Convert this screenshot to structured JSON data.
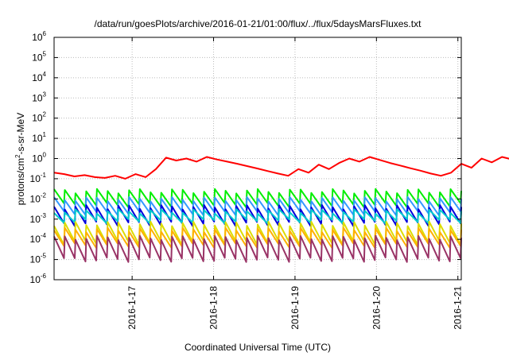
{
  "chart_data": {
    "type": "line",
    "title": "/data/run/goesPlots/archive/2016-01-21/01:00/flux/../flux/5daysMarsFluxes.txt",
    "xlabel": "Coordinated Universal Time (UTC)",
    "ylabel": "protons/cm2-s-sr-MeV",
    "ylabel_parts": {
      "prefix": "protons/cm",
      "sup": "2",
      "suffix": "-s-sr-MeV"
    },
    "y_scale": "log",
    "ylim": [
      "1e-6",
      "1e6"
    ],
    "y_ticks": [
      {
        "base": "10",
        "exp": "-6"
      },
      {
        "base": "10",
        "exp": "-5"
      },
      {
        "base": "10",
        "exp": "-4"
      },
      {
        "base": "10",
        "exp": "-3"
      },
      {
        "base": "10",
        "exp": "-2"
      },
      {
        "base": "10",
        "exp": "-1"
      },
      {
        "base": "10",
        "exp": "0"
      },
      {
        "base": "10",
        "exp": "1"
      },
      {
        "base": "10",
        "exp": "2"
      },
      {
        "base": "10",
        "exp": "3"
      },
      {
        "base": "10",
        "exp": "4"
      },
      {
        "base": "10",
        "exp": "5"
      },
      {
        "base": "10",
        "exp": "6"
      }
    ],
    "xlim": [
      "2016-01-16 01:00",
      "2016-01-21 01:00"
    ],
    "x_ticks": [
      "2016-1-17",
      "2016-1-18",
      "2016-1-19",
      "2016-1-20",
      "2016-1-21"
    ],
    "grid": true,
    "series": [
      {
        "color": "#ff0000",
        "x_start": "2016-01-16 01:00",
        "x_step_hours": 3,
        "values": [
          0.2,
          0.17,
          0.13,
          0.15,
          0.12,
          0.11,
          0.14,
          0.1,
          0.17,
          0.12,
          0.3,
          1.1,
          0.8,
          1.0,
          0.7,
          1.2,
          0.9,
          0.7,
          0.55,
          0.42,
          0.32,
          0.24,
          0.18,
          0.14,
          0.3,
          0.2,
          0.5,
          0.3,
          0.6,
          1.0,
          0.7,
          1.2,
          0.85,
          0.6,
          0.45,
          0.33,
          0.25,
          0.18,
          0.14,
          0.2,
          0.55,
          0.35,
          1.0,
          0.65,
          1.2,
          0.9,
          0.8,
          0.6,
          0.5,
          0.4,
          0.33,
          0.2,
          0.25,
          0.3,
          0.7,
          0.3,
          0.6,
          0.2,
          1.0,
          0.5,
          2.5,
          2.0,
          1.5,
          1.0,
          0.75,
          0.5,
          0.35,
          0.25,
          0.2,
          0.15,
          0.11,
          0.09,
          0.5,
          0.4,
          2.0,
          1.5,
          1.0,
          0.7,
          0.6,
          0.5,
          0.6
        ]
      },
      {
        "color": "#00ee00",
        "pattern": "sawtooth",
        "low": 0.005,
        "high": 0.025
      },
      {
        "color": "#3399ff",
        "pattern": "sawtooth",
        "low": 0.002,
        "high": 0.01
      },
      {
        "color": "#0000dd",
        "pattern": "sawtooth",
        "low": 0.0006,
        "high": 0.004
      },
      {
        "color": "#00cccc",
        "pattern": "sawtooth",
        "low": 0.0008,
        "high": 0.0025
      },
      {
        "color": "#dddd00",
        "pattern": "sawtooth",
        "low": 7e-05,
        "high": 0.0006
      },
      {
        "color": "#ffb000",
        "pattern": "sawtooth",
        "low": 5e-05,
        "high": 0.0003
      },
      {
        "color": "#993366",
        "pattern": "sawtooth",
        "low": 1e-05,
        "high": 0.00012
      }
    ]
  }
}
